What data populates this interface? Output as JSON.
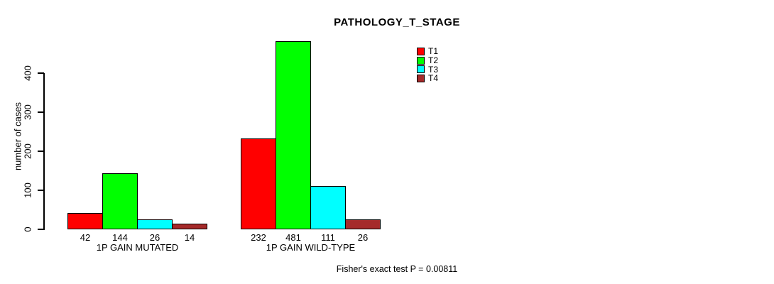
{
  "chart_data": {
    "type": "bar",
    "title": "PATHOLOGY_T_STAGE",
    "xlabel": "",
    "ylabel": "number of cases",
    "yticks": [
      0,
      100,
      200,
      300,
      400
    ],
    "ylim": [
      0,
      500
    ],
    "grid": false,
    "legend_position": "top-right",
    "bar_value_labels": true,
    "groups": [
      "1P GAIN MUTATED",
      "1P GAIN WILD-TYPE"
    ],
    "series": [
      {
        "name": "T1",
        "color": "#ff0000",
        "values": [
          42,
          232
        ]
      },
      {
        "name": "T2",
        "color": "#00ff00",
        "values": [
          144,
          481
        ]
      },
      {
        "name": "T3",
        "color": "#00ffff",
        "values": [
          26,
          111
        ]
      },
      {
        "name": "T4",
        "color": "#a52a2a",
        "values": [
          14,
          26
        ]
      }
    ],
    "annotation": "Fisher's exact test P = 0.00811"
  }
}
